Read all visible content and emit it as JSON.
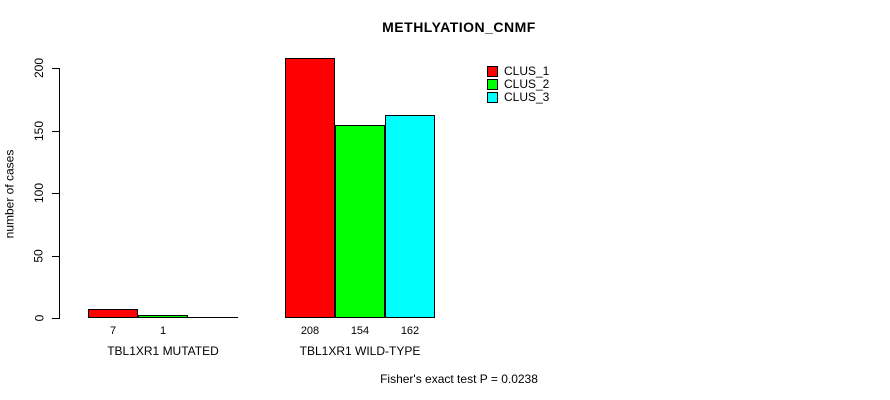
{
  "title": "METHLYATION_CNMF",
  "y_axis": {
    "label": "number of cases",
    "ticks": [
      "0",
      "50",
      "100",
      "150",
      "200"
    ]
  },
  "legend": {
    "items": [
      {
        "label": "CLUS_1",
        "color": "#ff0000"
      },
      {
        "label": "CLUS_2",
        "color": "#00ff00"
      },
      {
        "label": "CLUS_3",
        "color": "#00ffff"
      }
    ]
  },
  "footer": {
    "text": "Fisher's exact test P = 0.0238"
  },
  "chart_data": {
    "type": "bar",
    "title": "METHLYATION_CNMF",
    "xlabel": "",
    "ylabel": "number of cases",
    "ylim": [
      0,
      220
    ],
    "yticks": [
      0,
      50,
      100,
      150,
      200
    ],
    "grid": false,
    "legend_position": "top-right",
    "series": [
      "CLUS_1",
      "CLUS_2",
      "CLUS_3"
    ],
    "series_colors": [
      "#ff0000",
      "#00ff00",
      "#00ffff"
    ],
    "categories": [
      "TBL1XR1 MUTATED",
      "TBL1XR1 WILD-TYPE"
    ],
    "groups": [
      {
        "label": "TBL1XR1 MUTATED",
        "values": [
          7,
          1,
          0
        ],
        "bar_labels": [
          "7",
          "1",
          ""
        ]
      },
      {
        "label": "TBL1XR1 WILD-TYPE",
        "values": [
          208,
          154,
          162
        ],
        "bar_labels": [
          "208",
          "154",
          "162"
        ]
      }
    ],
    "annotation": "Fisher's exact test P = 0.0238"
  }
}
